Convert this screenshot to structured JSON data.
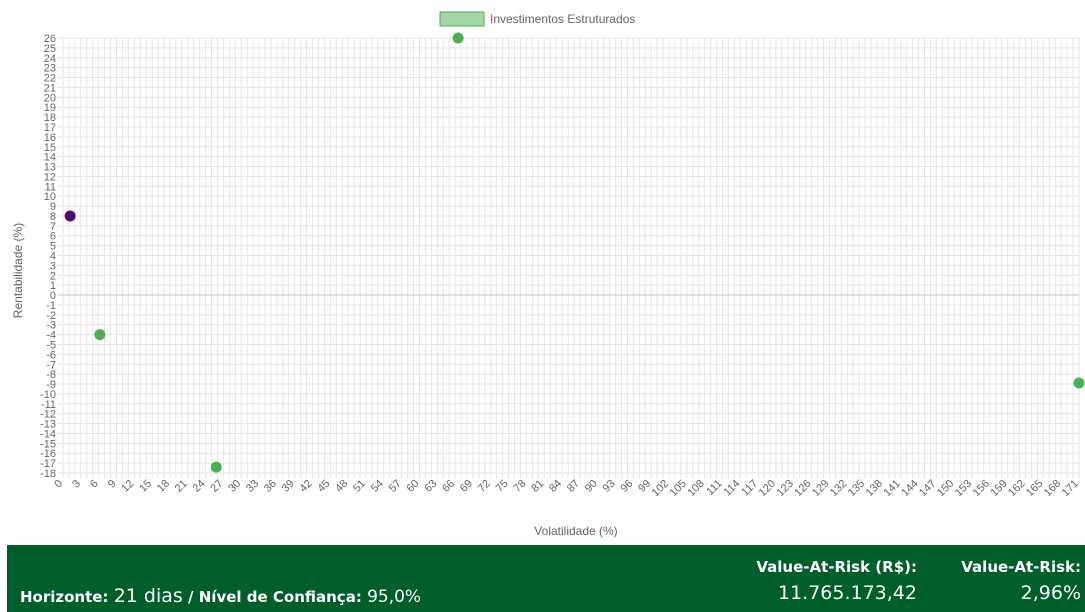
{
  "chart_data": {
    "type": "scatter",
    "xlabel": "Volatilidade (%)",
    "ylabel": "Rentabilidade (%)",
    "xlim": [
      0,
      171
    ],
    "ylim": [
      -18,
      26
    ],
    "x_tick_step": 3,
    "y_tick_step": 1,
    "grid": true,
    "legend_position": "top",
    "series": [
      {
        "name": "Investimentos Estruturados",
        "color": "#4caf50",
        "legend_color": "#a5d6a7",
        "points": [
          {
            "x": 66.5,
            "y": 26
          },
          {
            "x": 6.2,
            "y": -4
          },
          {
            "x": 25.8,
            "y": -17.4
          },
          {
            "x": 171,
            "y": -8.9
          }
        ]
      },
      {
        "name": "",
        "color": "#4a0d6b",
        "points": [
          {
            "x": 1.2,
            "y": 8
          }
        ]
      }
    ]
  },
  "footer": {
    "horizon_label": "Horizonte:",
    "horizon_value": "21 dias",
    "confidence_label": "/ Nível de Confiança:",
    "confidence_value": "95,0%",
    "var_rs_label": "Value-At-Risk (R$):",
    "var_rs_value": "11.765.173,42",
    "var_pct_label": "Value-At-Risk:",
    "var_pct_value": "2,96%"
  }
}
